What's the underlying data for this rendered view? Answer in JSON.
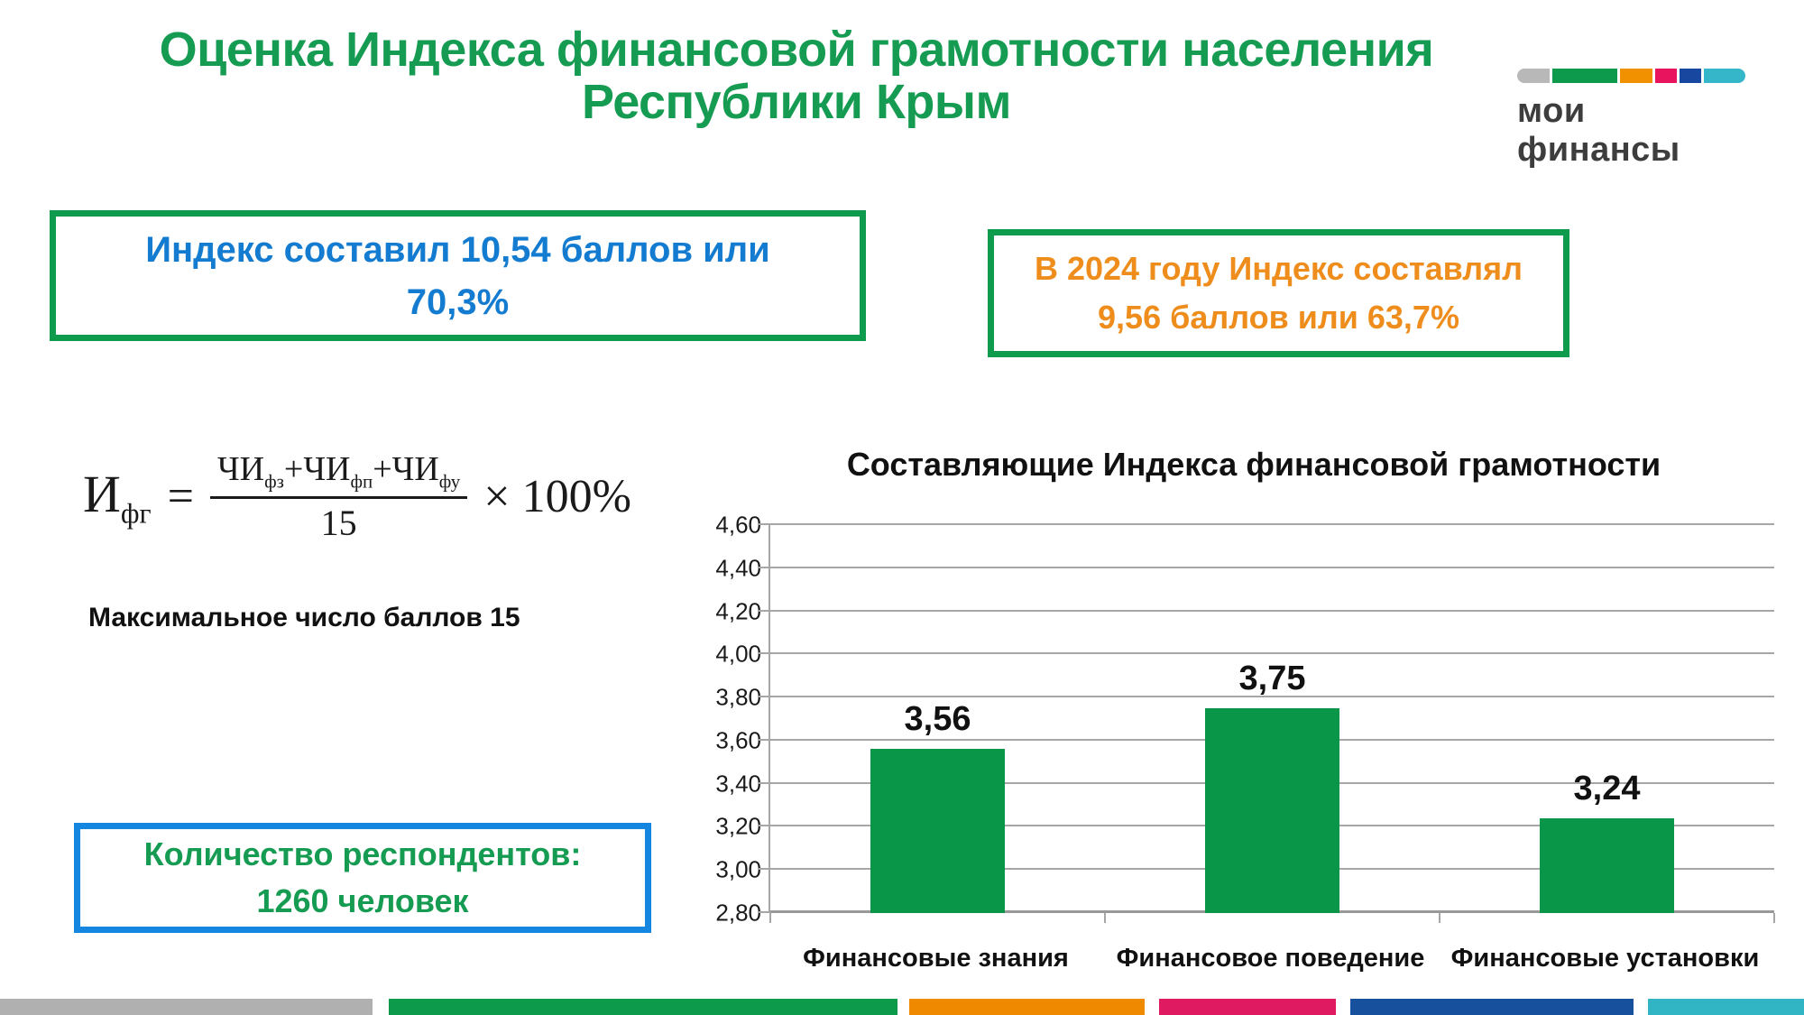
{
  "slide": {
    "title_line1": "Оценка Индекса финансовой грамотности населения",
    "title_line2": "Республики Крым",
    "title_color": "#169c52"
  },
  "logo": {
    "text": "мои финансы",
    "text_color": "#3d3d3d",
    "bar_colors": [
      "#b8b8b8",
      "#0d9a4c",
      "#f29100",
      "#e8145e",
      "#17479e",
      "#35b7c9"
    ]
  },
  "callouts": {
    "current_index": {
      "line1": "Индекс составил 10,54 баллов или",
      "line2": "70,3%",
      "text_color": "#147cd0",
      "border_color": "#0f9b4e"
    },
    "previous_index": {
      "line1": "В 2024 году Индекс составлял",
      "line2": "9,56 баллов или 63,7%",
      "text_color": "#ef8d1c",
      "border_color": "#0f9b4e"
    },
    "respondents": {
      "line1": "Количество респондентов:",
      "line2": "1260 человек",
      "text_color": "#169c52",
      "border_color": "#1486e0"
    }
  },
  "formula": {
    "lhs_base": "И",
    "lhs_sub": "фг",
    "equals": "=",
    "num_terms": [
      {
        "base": "ЧИ",
        "sub": "фз"
      },
      {
        "base": "ЧИ",
        "sub": "фп"
      },
      {
        "base": "ЧИ",
        "sub": "фу"
      }
    ],
    "plus": "+",
    "denominator": "15",
    "times": "×",
    "rhs": "100%"
  },
  "max_points_note": "Максимальное число баллов 15",
  "chart_data": {
    "type": "bar",
    "title": "Составляющие Индекса финансовой грамотности",
    "categories": [
      "Финансовые знания",
      "Финансовое поведение",
      "Финансовые установки"
    ],
    "values": [
      3.56,
      3.75,
      3.24
    ],
    "value_labels": [
      "3,56",
      "3,75",
      "3,24"
    ],
    "xlabel": "",
    "ylabel": "",
    "ylim": [
      2.8,
      4.6
    ],
    "ytick_step": 0.2,
    "ytick_labels": [
      "2,80",
      "3,00",
      "3,20",
      "3,40",
      "3,60",
      "3,80",
      "4,00",
      "4,20",
      "4,40",
      "4,60"
    ],
    "bar_color": "#0a9649",
    "gridline_color": "#a6a6a6",
    "grid": "horizontal",
    "legend": "none"
  },
  "footer_stripe": {
    "colors": [
      "#b0b0b0",
      "#0d9a4a",
      "#ef8a00",
      "#df1a60",
      "#17519e",
      "#31b5c4"
    ]
  }
}
